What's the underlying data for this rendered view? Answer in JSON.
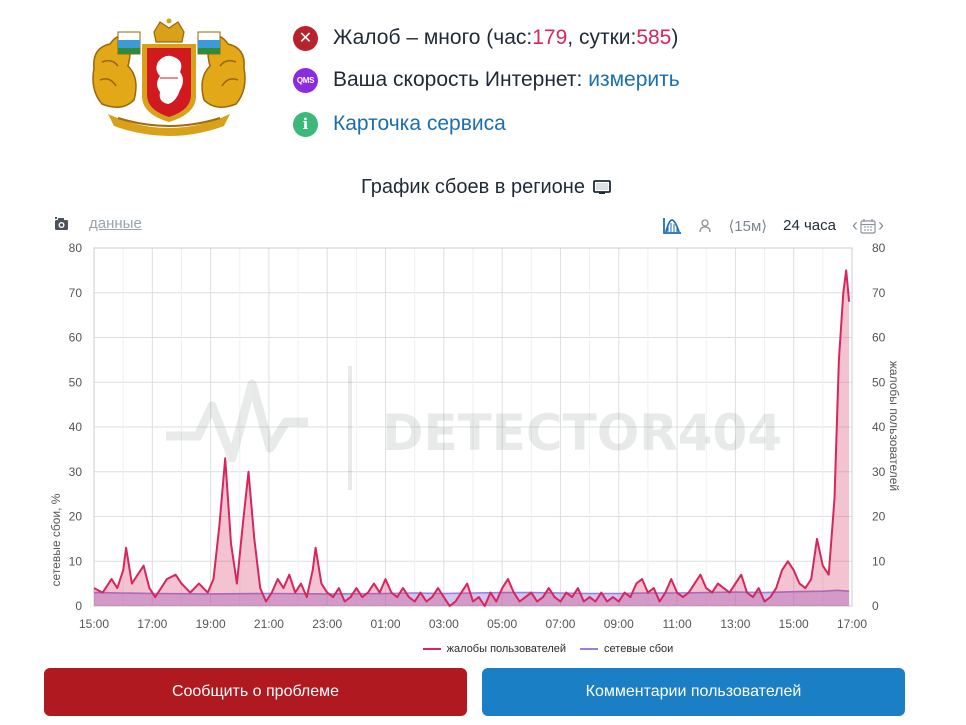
{
  "status": {
    "complaints_prefix": "Жалоб – много (час: ",
    "complaints_hour": "179",
    "complaints_mid": ", сутки: ",
    "complaints_day": "585",
    "complaints_suffix": ")",
    "speed_label": "Ваша скорость Интернет: ",
    "speed_link": "измерить",
    "card_link": "Карточка сервиса",
    "qms_icon_text": "QMS"
  },
  "chart_title": "График сбоев в регионе",
  "toolbar": {
    "data_link": "данные",
    "range_15m": "⟨15м⟩",
    "range_24h": "24 часа"
  },
  "watermark": "DETECTOR404",
  "colors": {
    "complaints": "#d6265b",
    "outages": "#9b7fe0",
    "report_button": "#b0191f",
    "comments_button": "#1b7fc5"
  },
  "chart_data": {
    "type": "area",
    "x_tick_labels": [
      "15:00",
      "17:00",
      "19:00",
      "21:00",
      "23:00",
      "01:00",
      "03:00",
      "05:00",
      "07:00",
      "09:00",
      "11:00",
      "13:00",
      "15:00",
      "17:00"
    ],
    "y_left_label": "сетевые сбои, %",
    "y_right_label": "жалобы пользователей",
    "ylim": [
      0,
      80
    ],
    "y_ticks": [
      0,
      10,
      20,
      30,
      40,
      50,
      60,
      70,
      80
    ],
    "x_hours_range": [
      0,
      26
    ],
    "series": [
      {
        "name": "жалобы пользователей",
        "axis": "right",
        "points": [
          [
            0,
            4
          ],
          [
            0.3,
            3
          ],
          [
            0.6,
            6
          ],
          [
            0.8,
            4
          ],
          [
            1.0,
            8
          ],
          [
            1.1,
            13
          ],
          [
            1.3,
            5
          ],
          [
            1.5,
            7
          ],
          [
            1.7,
            9
          ],
          [
            1.9,
            4
          ],
          [
            2.1,
            2
          ],
          [
            2.3,
            4
          ],
          [
            2.5,
            6
          ],
          [
            2.8,
            7
          ],
          [
            3.0,
            5
          ],
          [
            3.3,
            3
          ],
          [
            3.6,
            5
          ],
          [
            3.9,
            3
          ],
          [
            4.1,
            6
          ],
          [
            4.3,
            18
          ],
          [
            4.5,
            33
          ],
          [
            4.7,
            14
          ],
          [
            4.9,
            5
          ],
          [
            5.1,
            18
          ],
          [
            5.3,
            30
          ],
          [
            5.5,
            15
          ],
          [
            5.7,
            4
          ],
          [
            5.9,
            1
          ],
          [
            6.1,
            3
          ],
          [
            6.3,
            6
          ],
          [
            6.5,
            4
          ],
          [
            6.7,
            7
          ],
          [
            6.9,
            3
          ],
          [
            7.1,
            5
          ],
          [
            7.3,
            2
          ],
          [
            7.5,
            8
          ],
          [
            7.6,
            13
          ],
          [
            7.8,
            5
          ],
          [
            8.0,
            3
          ],
          [
            8.2,
            2
          ],
          [
            8.4,
            4
          ],
          [
            8.6,
            1
          ],
          [
            8.8,
            2
          ],
          [
            9.0,
            4
          ],
          [
            9.2,
            2
          ],
          [
            9.4,
            3
          ],
          [
            9.6,
            5
          ],
          [
            9.8,
            3
          ],
          [
            10.0,
            6
          ],
          [
            10.2,
            3
          ],
          [
            10.4,
            2
          ],
          [
            10.6,
            4
          ],
          [
            10.8,
            2
          ],
          [
            11.0,
            1
          ],
          [
            11.2,
            3
          ],
          [
            11.4,
            1
          ],
          [
            11.6,
            2
          ],
          [
            11.8,
            4
          ],
          [
            12.0,
            2
          ],
          [
            12.2,
            0
          ],
          [
            12.4,
            1
          ],
          [
            12.6,
            3
          ],
          [
            12.8,
            5
          ],
          [
            13.0,
            1
          ],
          [
            13.2,
            2
          ],
          [
            13.4,
            0
          ],
          [
            13.6,
            3
          ],
          [
            13.8,
            1
          ],
          [
            14.0,
            4
          ],
          [
            14.2,
            6
          ],
          [
            14.4,
            3
          ],
          [
            14.6,
            1
          ],
          [
            14.8,
            2
          ],
          [
            15.0,
            3
          ],
          [
            15.2,
            1
          ],
          [
            15.4,
            2
          ],
          [
            15.6,
            4
          ],
          [
            15.8,
            2
          ],
          [
            16.0,
            1
          ],
          [
            16.2,
            3
          ],
          [
            16.4,
            2
          ],
          [
            16.6,
            4
          ],
          [
            16.8,
            1
          ],
          [
            17.0,
            2
          ],
          [
            17.2,
            1
          ],
          [
            17.4,
            3
          ],
          [
            17.6,
            1
          ],
          [
            17.8,
            2
          ],
          [
            18.0,
            1
          ],
          [
            18.2,
            3
          ],
          [
            18.4,
            2
          ],
          [
            18.6,
            5
          ],
          [
            18.8,
            6
          ],
          [
            19.0,
            3
          ],
          [
            19.2,
            4
          ],
          [
            19.4,
            1
          ],
          [
            19.6,
            3
          ],
          [
            19.8,
            6
          ],
          [
            20.0,
            3
          ],
          [
            20.2,
            2
          ],
          [
            20.4,
            3
          ],
          [
            20.6,
            5
          ],
          [
            20.8,
            7
          ],
          [
            21.0,
            4
          ],
          [
            21.2,
            3
          ],
          [
            21.4,
            5
          ],
          [
            21.6,
            4
          ],
          [
            21.8,
            3
          ],
          [
            22.0,
            5
          ],
          [
            22.2,
            7
          ],
          [
            22.4,
            3
          ],
          [
            22.6,
            2
          ],
          [
            22.8,
            4
          ],
          [
            23.0,
            1
          ],
          [
            23.2,
            2
          ],
          [
            23.4,
            4
          ],
          [
            23.6,
            8
          ],
          [
            23.8,
            10
          ],
          [
            24.0,
            8
          ],
          [
            24.2,
            5
          ],
          [
            24.4,
            4
          ],
          [
            24.6,
            6
          ],
          [
            24.8,
            15
          ],
          [
            25.0,
            9
          ],
          [
            25.2,
            7
          ],
          [
            25.4,
            24
          ],
          [
            25.55,
            55
          ],
          [
            25.7,
            70
          ],
          [
            25.8,
            75
          ],
          [
            25.9,
            68
          ]
        ]
      },
      {
        "name": "сетевые сбои",
        "axis": "left",
        "points": [
          [
            0,
            3
          ],
          [
            2,
            2.8
          ],
          [
            4,
            2.7
          ],
          [
            6,
            2.8
          ],
          [
            8,
            2.7
          ],
          [
            10,
            2.8
          ],
          [
            11,
            2.9
          ],
          [
            12,
            2.8
          ],
          [
            13,
            2.9
          ],
          [
            14,
            3.0
          ],
          [
            15,
            3.0
          ],
          [
            16,
            2.9
          ],
          [
            17,
            2.8
          ],
          [
            18,
            2.8
          ],
          [
            19,
            2.9
          ],
          [
            20,
            2.9
          ],
          [
            21,
            3.0
          ],
          [
            22,
            3.1
          ],
          [
            23,
            3.0
          ],
          [
            24,
            3.2
          ],
          [
            25,
            3.3
          ],
          [
            25.5,
            3.5
          ],
          [
            25.9,
            3.3
          ]
        ]
      }
    ]
  },
  "legend": {
    "complaints_label": "жалобы пользователей",
    "outages_label": "сетевые сбои"
  },
  "buttons": {
    "report": "Сообщить о проблеме",
    "comments": "Комментарии пользователей"
  }
}
